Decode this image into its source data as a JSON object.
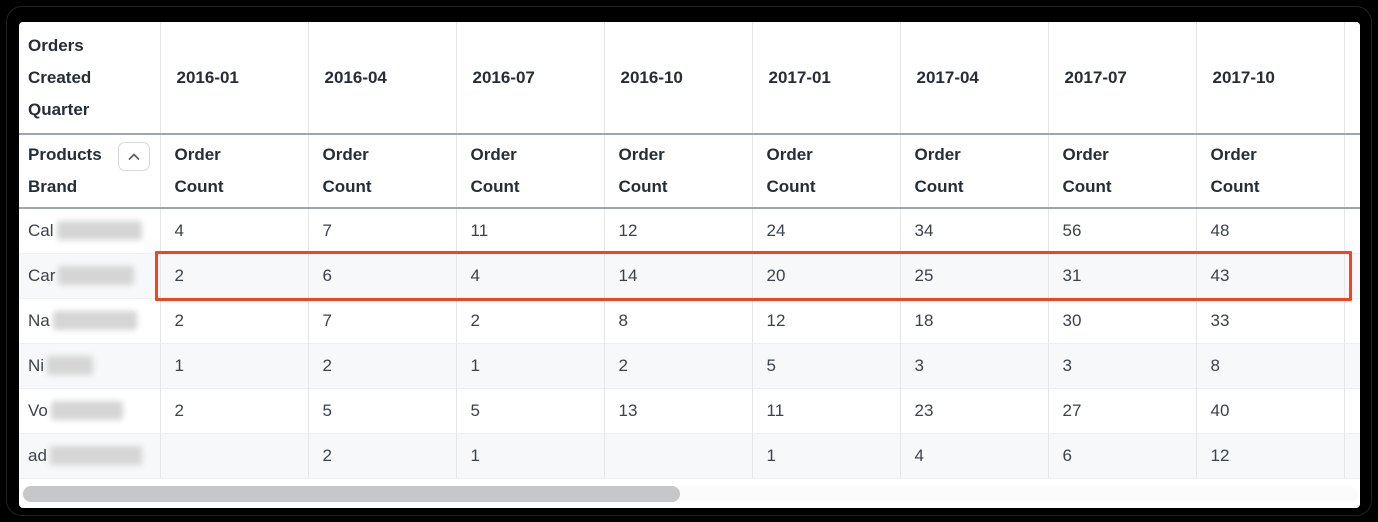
{
  "table": {
    "corner_header": "Orders Created Quarter",
    "row_dimension_header": "Products Brand",
    "measure_header": "Order Count",
    "sort_icon": "chevron-up-icon",
    "quarters": [
      "2016-01",
      "2016-04",
      "2016-07",
      "2016-10",
      "2017-01",
      "2017-04",
      "2017-07",
      "2017-10"
    ],
    "rows": [
      {
        "label_prefix": "Cal",
        "label_blur_width": 85,
        "highlighted": false,
        "values": [
          "4",
          "7",
          "11",
          "12",
          "24",
          "34",
          "56",
          "48"
        ]
      },
      {
        "label_prefix": "Car",
        "label_blur_width": 76,
        "highlighted": true,
        "values": [
          "2",
          "6",
          "4",
          "14",
          "20",
          "25",
          "31",
          "43"
        ]
      },
      {
        "label_prefix": "Na",
        "label_blur_width": 84,
        "highlighted": false,
        "values": [
          "2",
          "7",
          "2",
          "8",
          "12",
          "18",
          "30",
          "33"
        ]
      },
      {
        "label_prefix": "Ni",
        "label_blur_width": 46,
        "highlighted": false,
        "values": [
          "1",
          "2",
          "1",
          "2",
          "5",
          "3",
          "3",
          "8"
        ]
      },
      {
        "label_prefix": "Vo",
        "label_blur_width": 72,
        "highlighted": false,
        "values": [
          "2",
          "5",
          "5",
          "13",
          "11",
          "23",
          "27",
          "40"
        ]
      },
      {
        "label_prefix": "ad",
        "label_blur_width": 92,
        "highlighted": false,
        "values": [
          "",
          "2",
          "1",
          "",
          "1",
          "4",
          "6",
          "12"
        ]
      }
    ],
    "colors": {
      "frame": "#000000",
      "table_bg": "#ffffff",
      "header_text": "#262d35",
      "body_text": "#3b424a",
      "gridline": "#e4e6e8",
      "header_rule": "#9fa5aa",
      "row_rule": "#edeff1",
      "stripe": "#f7f8f9",
      "highlight": "#f4441f",
      "smudge": "#d5d5d5",
      "scrollbar_thumb": "#c5c7c9",
      "sort_icon": "#5f6368",
      "sort_border": "#d5d8dc"
    }
  }
}
